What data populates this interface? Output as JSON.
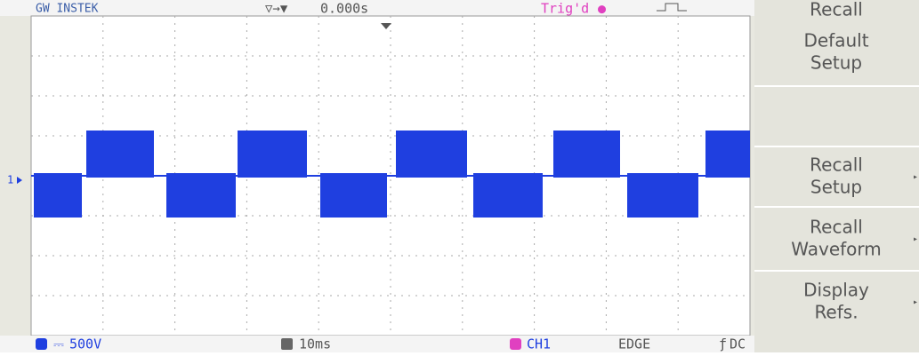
{
  "header": {
    "brand": "GW INSTEK",
    "timebase_position": "0.000s",
    "trigger_status": "Trig'd"
  },
  "screen": {
    "channel_marker": "1"
  },
  "menu": {
    "title": "Recall",
    "items": [
      {
        "line1": "Default",
        "line2": "Setup"
      },
      {
        "line1": "Recall",
        "line2": "Setup"
      },
      {
        "line1": "Recall",
        "line2": "Waveform"
      },
      {
        "line1": "Display",
        "line2": "Refs."
      }
    ]
  },
  "footer": {
    "volts_per_div": "500V",
    "time_per_div": "10ms",
    "trigger_source": "CH1",
    "trigger_type": "EDGE",
    "coupling": "DC"
  }
}
